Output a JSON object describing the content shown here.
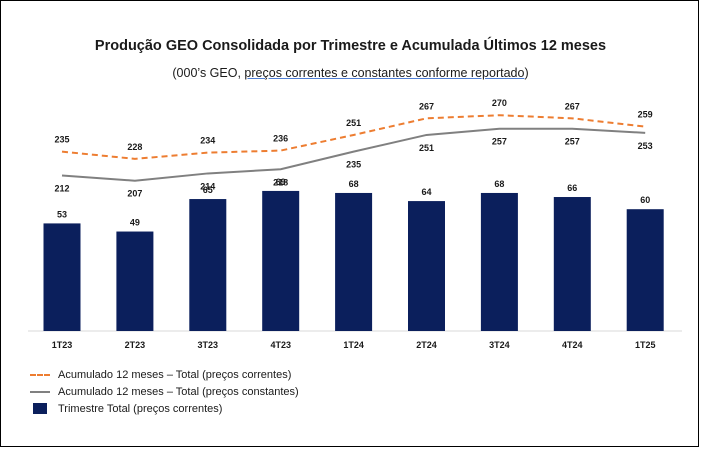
{
  "title": "Produção GEO Consolidada por Trimestre e Acumulada Últimos 12 meses",
  "subtitle_prefix": "(000’s GEO, ",
  "subtitle_underlined": "preços correntes e constantes conforme reportado",
  "subtitle_suffix": ")",
  "colors": {
    "bar": "#0b1f5c",
    "line_correntes": "#ed7d31",
    "line_constantes": "#808080"
  },
  "chart_data": {
    "type": "bar",
    "categories": [
      "1T23",
      "2T23",
      "3T23",
      "4T23",
      "1T24",
      "2T24",
      "3T24",
      "4T24",
      "1T25"
    ],
    "series": [
      {
        "name": "Trimestre Total (preços correntes)",
        "type": "bar",
        "values": [
          53,
          49,
          65,
          69,
          68,
          64,
          68,
          66,
          60
        ]
      },
      {
        "name": "Acumulado 12 meses – Total (preços correntes)",
        "type": "line",
        "style": "dashed",
        "values": [
          235,
          228,
          234,
          236,
          251,
          267,
          270,
          267,
          259
        ]
      },
      {
        "name": "Acumulado 12 meses – Total (preços constantes)",
        "type": "line",
        "style": "solid",
        "values": [
          212,
          207,
          214,
          218,
          235,
          251,
          257,
          257,
          253
        ]
      }
    ],
    "legend_position": "bottom-left",
    "grid": false
  }
}
